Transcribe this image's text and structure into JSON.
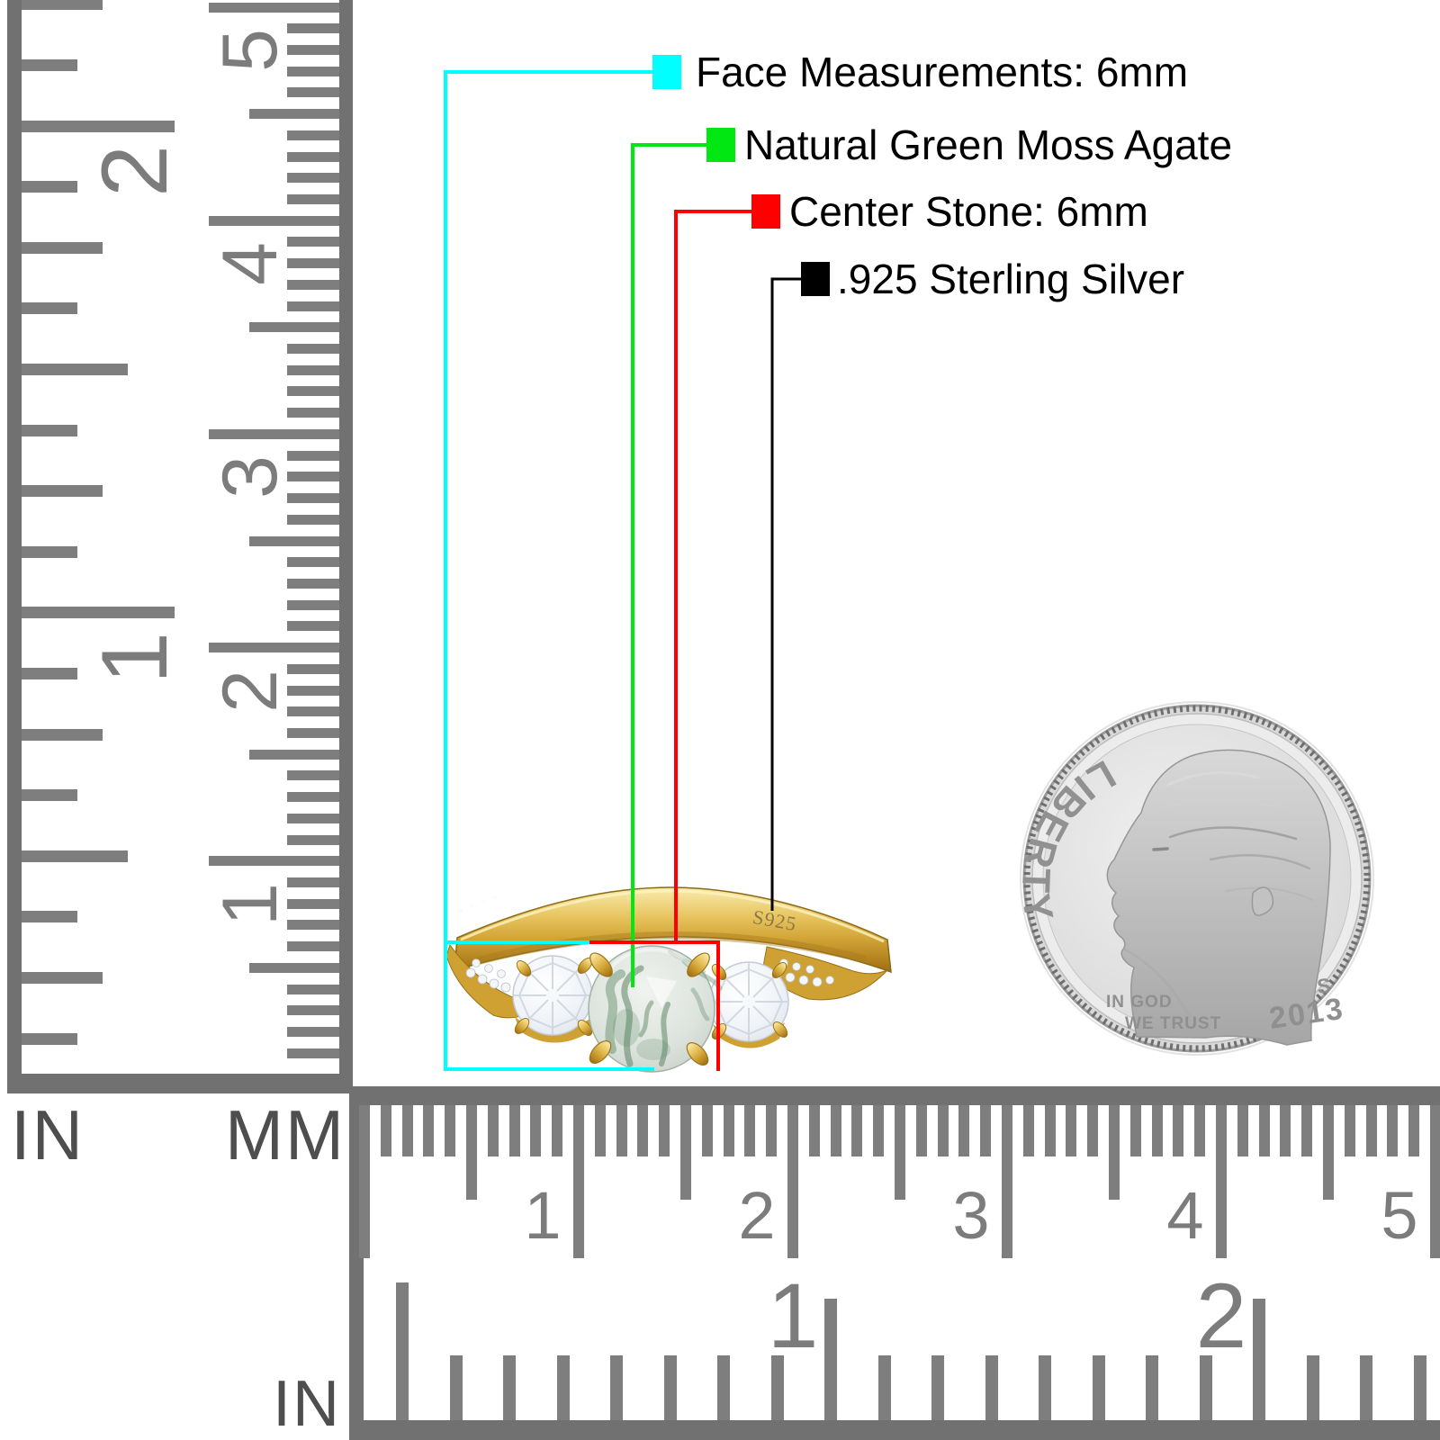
{
  "annotations": [
    {
      "label": "Face Measurements: 6mm",
      "color": "#00ffff"
    },
    {
      "label": "Natural Green Moss Agate",
      "color": "#00e712"
    },
    {
      "label": "Center Stone: 6mm",
      "color": "#ff0000"
    },
    {
      "label": ".925 Sterling Silver",
      "color": "#000000"
    }
  ],
  "left_ruler": {
    "label_left": "IN",
    "label_right": "MM",
    "cm_numbers": [
      "5",
      "4",
      "3",
      "2",
      "1"
    ],
    "inch_numbers": [
      "2",
      "1"
    ]
  },
  "bottom_ruler": {
    "label": "IN",
    "cm_numbers": [
      "1",
      "2",
      "3",
      "4",
      "5"
    ],
    "inch_numbers": [
      "1",
      "2"
    ]
  },
  "ring": {
    "engraving": "S925",
    "band_color": "#d4a73c",
    "center_stone_color": "#c7cfc9",
    "moss_color": "#5d8a66"
  },
  "coin": {
    "legend": "LIBERTY",
    "motto_line1": "IN GOD",
    "motto_line2": "WE TRUST",
    "year": "2013",
    "mint_mark": "S"
  }
}
